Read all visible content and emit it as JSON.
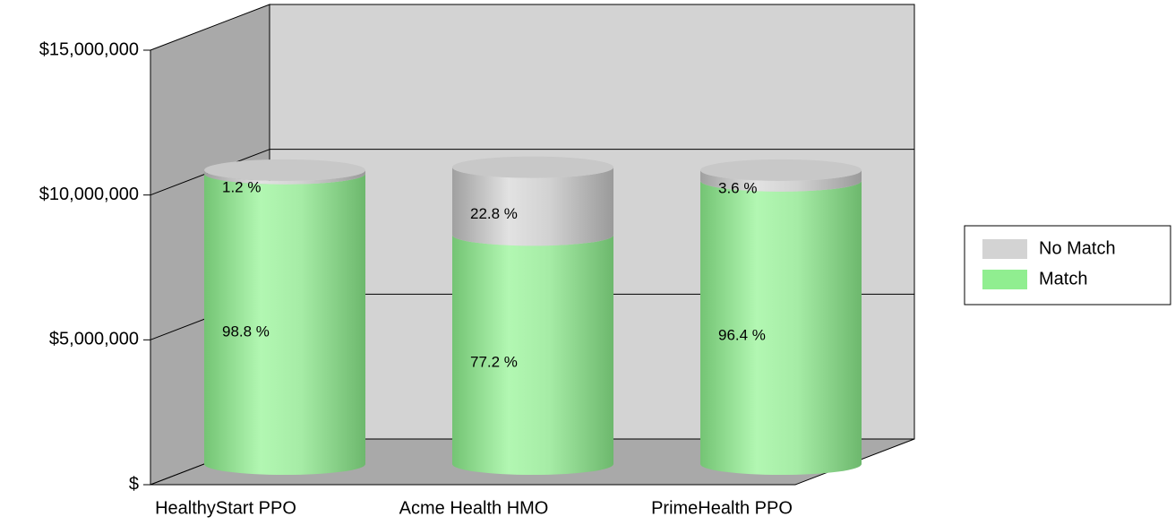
{
  "chart_data": {
    "type": "bar3d_stacked_cylinder",
    "categories": [
      "HealthyStart PPO",
      "Acme Health HMO",
      "PrimeHealth PPO"
    ],
    "series": [
      {
        "name": "Match",
        "color": "#90ee90",
        "values": [
          10030000,
          7910000,
          9780000
        ],
        "percent_labels": [
          "98.8 %",
          "77.2 %",
          "96.4 %"
        ]
      },
      {
        "name": "No Match",
        "color": "#d3d3d3",
        "values": [
          120000,
          2340000,
          370000
        ],
        "percent_labels": [
          "1.2 %",
          "22.8 %",
          "3.6 %"
        ]
      }
    ],
    "ylim": [
      0,
      15000000
    ],
    "yticks": [
      {
        "value": 0,
        "label": "$"
      },
      {
        "value": 5000000,
        "label": "$5,000,000"
      },
      {
        "value": 10000000,
        "label": "$10,000,000"
      },
      {
        "value": 15000000,
        "label": "$15,000,000"
      }
    ],
    "grid": true,
    "legend": "right"
  }
}
